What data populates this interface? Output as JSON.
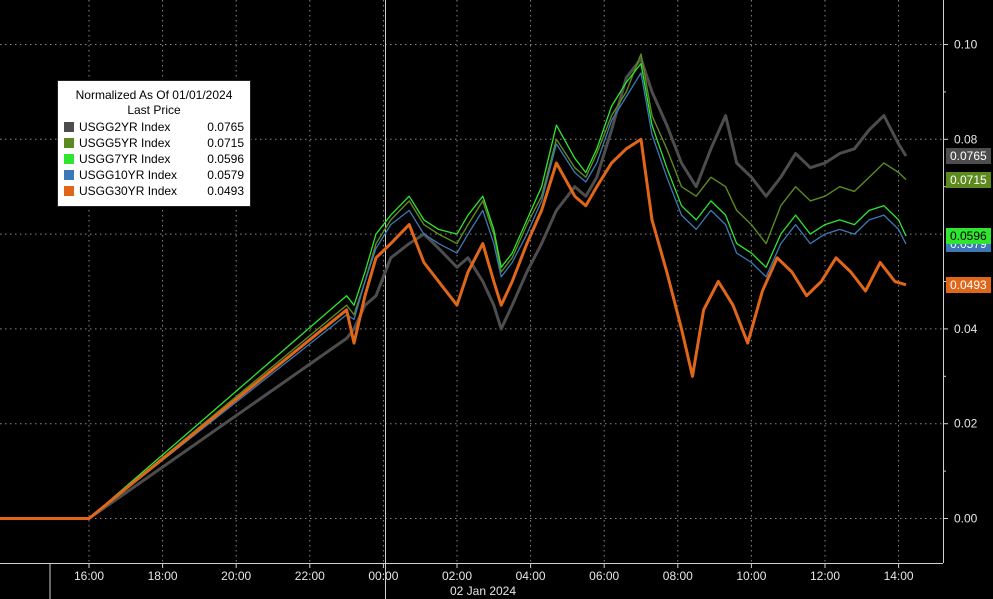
{
  "chart_data": {
    "type": "line",
    "title": "",
    "xlabel": "02 Jan 2024",
    "ylabel": "",
    "x_ticks": [
      "16:00",
      "18:00",
      "20:00",
      "22:00",
      "00:00",
      "02:00",
      "04:00",
      "06:00",
      "08:00",
      "10:00",
      "12:00",
      "14:00"
    ],
    "y_ticks": [
      "0.00",
      "0.02",
      "0.04",
      "0.08",
      "0.10"
    ],
    "ylim": [
      -0.01,
      0.105
    ],
    "x_range_hours": [
      "14:00 (01 Jan)",
      "14:00 (02 Jan)"
    ],
    "grid": true,
    "legend": {
      "placement": "top-left",
      "title": "Normalized As Of 01/01/2024",
      "subtitle": "Last Price"
    },
    "series": [
      {
        "name": "USGG2YR Index",
        "last": "0.0765",
        "color": "#4d4d4d",
        "points": [
          [
            15.4,
            0.0
          ],
          [
            16.0,
            0.0
          ],
          [
            23.0,
            0.038
          ],
          [
            23.2,
            0.04
          ],
          [
            23.5,
            0.045
          ],
          [
            23.8,
            0.047
          ],
          [
            24.2,
            0.055
          ],
          [
            24.7,
            0.058
          ],
          [
            25.1,
            0.06
          ],
          [
            25.5,
            0.057
          ],
          [
            26.0,
            0.053
          ],
          [
            26.3,
            0.055
          ],
          [
            26.7,
            0.05
          ],
          [
            27.0,
            0.045
          ],
          [
            27.2,
            0.04
          ],
          [
            27.5,
            0.045
          ],
          [
            27.9,
            0.052
          ],
          [
            28.3,
            0.058
          ],
          [
            28.7,
            0.065
          ],
          [
            29.2,
            0.07
          ],
          [
            29.5,
            0.068
          ],
          [
            29.8,
            0.072
          ],
          [
            30.2,
            0.082
          ],
          [
            30.6,
            0.093
          ],
          [
            31.0,
            0.097
          ],
          [
            31.3,
            0.09
          ],
          [
            31.7,
            0.083
          ],
          [
            32.1,
            0.075
          ],
          [
            32.5,
            0.07
          ],
          [
            32.9,
            0.078
          ],
          [
            33.3,
            0.085
          ],
          [
            33.6,
            0.075
          ],
          [
            34.0,
            0.072
          ],
          [
            34.4,
            0.068
          ],
          [
            34.8,
            0.072
          ],
          [
            35.2,
            0.077
          ],
          [
            35.6,
            0.074
          ],
          [
            36.0,
            0.075
          ],
          [
            36.4,
            0.077
          ],
          [
            36.8,
            0.078
          ],
          [
            37.2,
            0.082
          ],
          [
            37.6,
            0.085
          ],
          [
            38.0,
            0.079
          ],
          [
            38.2,
            0.0765
          ]
        ]
      },
      {
        "name": "USGG5YR Index",
        "last": "0.0715",
        "color": "#5c8a1e",
        "points": [
          [
            15.4,
            0.0
          ],
          [
            16.0,
            0.0
          ],
          [
            23.0,
            0.045
          ],
          [
            23.2,
            0.043
          ],
          [
            23.5,
            0.05
          ],
          [
            23.8,
            0.058
          ],
          [
            24.2,
            0.063
          ],
          [
            24.7,
            0.067
          ],
          [
            25.1,
            0.062
          ],
          [
            25.5,
            0.06
          ],
          [
            26.0,
            0.058
          ],
          [
            26.3,
            0.062
          ],
          [
            26.7,
            0.067
          ],
          [
            27.0,
            0.06
          ],
          [
            27.2,
            0.052
          ],
          [
            27.5,
            0.055
          ],
          [
            27.9,
            0.062
          ],
          [
            28.3,
            0.068
          ],
          [
            28.7,
            0.08
          ],
          [
            29.2,
            0.074
          ],
          [
            29.5,
            0.072
          ],
          [
            29.8,
            0.077
          ],
          [
            30.2,
            0.085
          ],
          [
            30.6,
            0.09
          ],
          [
            31.0,
            0.098
          ],
          [
            31.3,
            0.085
          ],
          [
            31.7,
            0.078
          ],
          [
            32.1,
            0.07
          ],
          [
            32.5,
            0.068
          ],
          [
            32.9,
            0.072
          ],
          [
            33.3,
            0.07
          ],
          [
            33.6,
            0.065
          ],
          [
            34.0,
            0.062
          ],
          [
            34.4,
            0.058
          ],
          [
            34.8,
            0.066
          ],
          [
            35.2,
            0.07
          ],
          [
            35.6,
            0.067
          ],
          [
            36.0,
            0.068
          ],
          [
            36.4,
            0.07
          ],
          [
            36.8,
            0.069
          ],
          [
            37.2,
            0.072
          ],
          [
            37.6,
            0.075
          ],
          [
            38.0,
            0.073
          ],
          [
            38.2,
            0.0715
          ]
        ]
      },
      {
        "name": "USGG7YR Index",
        "last": "0.0596",
        "color": "#2ee62e",
        "points": [
          [
            15.4,
            0.0
          ],
          [
            16.0,
            0.0
          ],
          [
            23.0,
            0.047
          ],
          [
            23.2,
            0.045
          ],
          [
            23.5,
            0.052
          ],
          [
            23.8,
            0.06
          ],
          [
            24.2,
            0.064
          ],
          [
            24.7,
            0.068
          ],
          [
            25.1,
            0.063
          ],
          [
            25.5,
            0.061
          ],
          [
            26.0,
            0.06
          ],
          [
            26.3,
            0.064
          ],
          [
            26.7,
            0.068
          ],
          [
            27.0,
            0.061
          ],
          [
            27.2,
            0.053
          ],
          [
            27.5,
            0.056
          ],
          [
            27.9,
            0.063
          ],
          [
            28.3,
            0.07
          ],
          [
            28.7,
            0.083
          ],
          [
            29.2,
            0.076
          ],
          [
            29.5,
            0.073
          ],
          [
            29.8,
            0.078
          ],
          [
            30.2,
            0.087
          ],
          [
            30.6,
            0.092
          ],
          [
            31.0,
            0.096
          ],
          [
            31.3,
            0.083
          ],
          [
            31.7,
            0.074
          ],
          [
            32.1,
            0.066
          ],
          [
            32.5,
            0.063
          ],
          [
            32.9,
            0.067
          ],
          [
            33.3,
            0.064
          ],
          [
            33.6,
            0.058
          ],
          [
            34.0,
            0.056
          ],
          [
            34.4,
            0.053
          ],
          [
            34.8,
            0.06
          ],
          [
            35.2,
            0.064
          ],
          [
            35.6,
            0.06
          ],
          [
            36.0,
            0.062
          ],
          [
            36.4,
            0.063
          ],
          [
            36.8,
            0.062
          ],
          [
            37.2,
            0.065
          ],
          [
            37.6,
            0.066
          ],
          [
            38.0,
            0.063
          ],
          [
            38.2,
            0.0596
          ]
        ]
      },
      {
        "name": "USGG10YR Index",
        "last": "0.0579",
        "color": "#3b78b5",
        "points": [
          [
            15.4,
            0.0
          ],
          [
            16.0,
            0.0
          ],
          [
            23.0,
            0.043
          ],
          [
            23.2,
            0.042
          ],
          [
            23.5,
            0.05
          ],
          [
            23.8,
            0.057
          ],
          [
            24.2,
            0.062
          ],
          [
            24.7,
            0.065
          ],
          [
            25.1,
            0.06
          ],
          [
            25.5,
            0.058
          ],
          [
            26.0,
            0.056
          ],
          [
            26.3,
            0.06
          ],
          [
            26.7,
            0.065
          ],
          [
            27.0,
            0.058
          ],
          [
            27.2,
            0.051
          ],
          [
            27.5,
            0.054
          ],
          [
            27.9,
            0.06
          ],
          [
            28.3,
            0.067
          ],
          [
            28.7,
            0.079
          ],
          [
            29.2,
            0.073
          ],
          [
            29.5,
            0.071
          ],
          [
            29.8,
            0.075
          ],
          [
            30.2,
            0.084
          ],
          [
            30.6,
            0.089
          ],
          [
            31.0,
            0.094
          ],
          [
            31.3,
            0.081
          ],
          [
            31.7,
            0.072
          ],
          [
            32.1,
            0.064
          ],
          [
            32.5,
            0.061
          ],
          [
            32.9,
            0.065
          ],
          [
            33.3,
            0.062
          ],
          [
            33.6,
            0.056
          ],
          [
            34.0,
            0.054
          ],
          [
            34.4,
            0.051
          ],
          [
            34.8,
            0.058
          ],
          [
            35.2,
            0.062
          ],
          [
            35.6,
            0.058
          ],
          [
            36.0,
            0.06
          ],
          [
            36.4,
            0.061
          ],
          [
            36.8,
            0.06
          ],
          [
            37.2,
            0.063
          ],
          [
            37.6,
            0.064
          ],
          [
            38.0,
            0.061
          ],
          [
            38.2,
            0.0579
          ]
        ]
      },
      {
        "name": "USGG30YR Index",
        "last": "0.0493",
        "color": "#e0661a",
        "points": [
          [
            15.4,
            0.0
          ],
          [
            16.0,
            0.0
          ],
          [
            23.0,
            0.044
          ],
          [
            23.2,
            0.037
          ],
          [
            23.5,
            0.047
          ],
          [
            23.8,
            0.055
          ],
          [
            24.2,
            0.058
          ],
          [
            24.7,
            0.062
          ],
          [
            25.1,
            0.054
          ],
          [
            25.5,
            0.05
          ],
          [
            26.0,
            0.045
          ],
          [
            26.3,
            0.052
          ],
          [
            26.7,
            0.058
          ],
          [
            27.0,
            0.05
          ],
          [
            27.2,
            0.045
          ],
          [
            27.5,
            0.05
          ],
          [
            27.9,
            0.058
          ],
          [
            28.3,
            0.065
          ],
          [
            28.7,
            0.075
          ],
          [
            29.2,
            0.068
          ],
          [
            29.5,
            0.066
          ],
          [
            29.8,
            0.07
          ],
          [
            30.2,
            0.075
          ],
          [
            30.6,
            0.078
          ],
          [
            31.0,
            0.08
          ],
          [
            31.3,
            0.063
          ],
          [
            31.7,
            0.052
          ],
          [
            32.1,
            0.04
          ],
          [
            32.4,
            0.03
          ],
          [
            32.7,
            0.044
          ],
          [
            33.1,
            0.05
          ],
          [
            33.5,
            0.045
          ],
          [
            33.9,
            0.037
          ],
          [
            34.3,
            0.048
          ],
          [
            34.7,
            0.055
          ],
          [
            35.1,
            0.052
          ],
          [
            35.5,
            0.047
          ],
          [
            35.9,
            0.05
          ],
          [
            36.3,
            0.055
          ],
          [
            36.7,
            0.052
          ],
          [
            37.1,
            0.048
          ],
          [
            37.5,
            0.054
          ],
          [
            37.9,
            0.05
          ],
          [
            38.2,
            0.0493
          ]
        ]
      }
    ]
  }
}
